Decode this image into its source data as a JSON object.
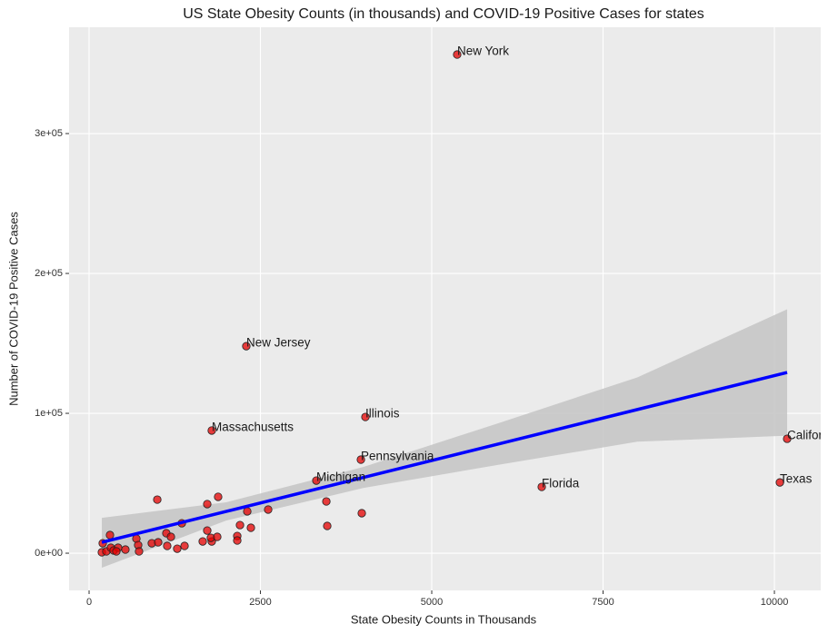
{
  "chart_data": {
    "type": "scatter",
    "title": "US State Obesity Counts (in thousands) and COVID-19 Positive Cases for states",
    "x_label": "State Obesity Counts in Thousands",
    "y_label": "Number of COVID-19 Positive Cases",
    "xlim": [
      -292,
      10676
    ],
    "ylim": [
      -26600,
      376000
    ],
    "xticks": [
      0,
      2500,
      5000,
      7500,
      10000
    ],
    "yticks": [
      {
        "value": 0,
        "label": "0e+00"
      },
      {
        "value": 100000,
        "label": "1e+05"
      },
      {
        "value": 200000,
        "label": "2e+05"
      },
      {
        "value": 300000,
        "label": "3e+05"
      }
    ],
    "grid": true,
    "color": "#e60000",
    "x": [
      5371,
      2294,
      1790,
      4032,
      3966,
      3316,
      6605,
      10080,
      10186,
      199,
      186,
      252,
      318,
      305,
      358,
      424,
      530,
      398,
      690,
      716,
      729,
      915,
      1008,
      995,
      1127,
      1140,
      1194,
      1286,
      1393,
      1353,
      1658,
      1724,
      1724,
      1790,
      1777,
      1870,
      1883,
      2162,
      2162,
      2202,
      2308,
      2361,
      2613,
      3462,
      3475,
      3979
    ],
    "values": [
      356500,
      148000,
      87700,
      97400,
      66900,
      51900,
      47400,
      50600,
      81800,
      7100,
      650,
      1300,
      3900,
      13000,
      1950,
      3900,
      2600,
      1300,
      10400,
      5800,
      1300,
      7100,
      7800,
      38300,
      14300,
      5200,
      11700,
      3200,
      5200,
      21400,
      8400,
      35100,
      16200,
      8400,
      11000,
      11700,
      40300,
      12300,
      9100,
      20100,
      29900,
      18200,
      31200,
      37000,
      19500,
      28600
    ],
    "point_labels": [
      "New York",
      "New Jersey",
      "Massachusetts",
      "Illinois",
      "Pennsylvania",
      "Michigan",
      "Florida",
      "Texas",
      "California",
      null,
      null,
      null,
      null,
      null,
      null,
      null,
      null,
      null,
      null,
      null,
      null,
      null,
      null,
      null,
      null,
      null,
      null,
      null,
      null,
      null,
      null,
      null,
      null,
      null,
      null,
      null,
      null,
      null,
      null,
      null,
      null,
      null,
      null,
      null,
      null,
      null
    ],
    "fit": {
      "color": "#0000ff",
      "band_color": "#c4c4c4",
      "x": [
        186,
        2000,
        4000,
        6000,
        8000,
        10186
      ],
      "values": [
        7800,
        29830,
        54100,
        78400,
        102700,
        129200
      ],
      "lower": [
        -10400,
        23300,
        46600,
        63400,
        79700,
        84000
      ],
      "upper": [
        25300,
        36400,
        61600,
        93400,
        125700,
        174400
      ]
    }
  }
}
